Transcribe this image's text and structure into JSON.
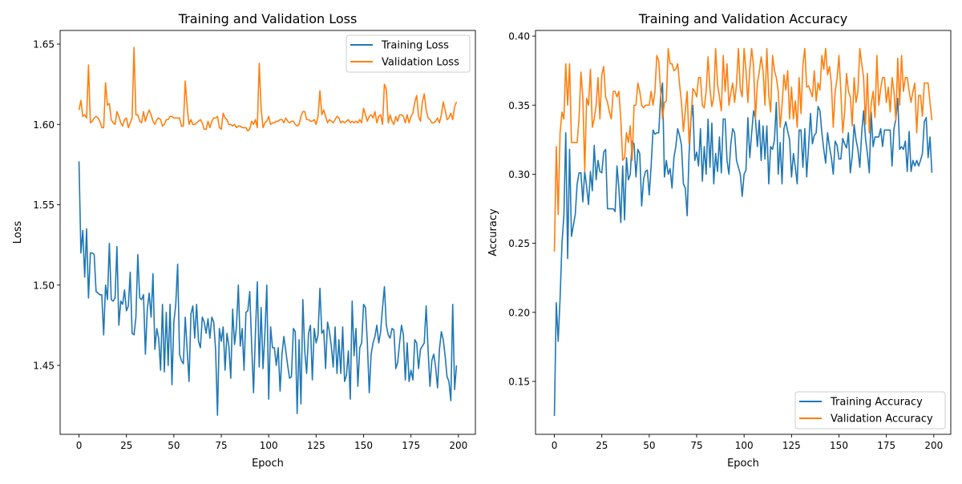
{
  "chart_data": [
    {
      "type": "line",
      "title": "Training and Validation Loss",
      "xlabel": "Epoch",
      "ylabel": "Loss",
      "xlim": [
        -9.95,
        208.95
      ],
      "ylim": [
        1.4071,
        1.6585
      ],
      "xticks": [
        0,
        25,
        50,
        75,
        100,
        125,
        150,
        175,
        200
      ],
      "xtick_labels": [
        "0",
        "25",
        "50",
        "75",
        "100",
        "125",
        "150",
        "175",
        "200"
      ],
      "yticks": [
        1.45,
        1.5,
        1.55,
        1.6,
        1.65
      ],
      "ytick_labels": [
        "1.45",
        "1.50",
        "1.55",
        "1.60",
        "1.65"
      ],
      "grid": false,
      "legend_position": "top-right",
      "series": [
        {
          "name": "Training Loss",
          "color": "#1f77b4",
          "values": [
            1.577,
            1.52,
            1.534,
            1.505,
            1.535,
            1.492,
            1.52,
            1.52,
            1.519,
            1.496,
            1.495,
            1.494,
            1.494,
            1.469,
            1.5,
            1.491,
            1.526,
            1.491,
            1.49,
            1.492,
            1.524,
            1.475,
            1.49,
            1.488,
            1.497,
            1.484,
            1.487,
            1.508,
            1.47,
            1.469,
            1.48,
            1.519,
            1.492,
            1.491,
            1.494,
            1.457,
            1.485,
            1.495,
            1.48,
            1.507,
            1.46,
            1.473,
            1.467,
            1.447,
            1.488,
            1.446,
            1.483,
            1.45,
            1.488,
            1.438,
            1.477,
            1.488,
            1.513,
            1.457,
            1.453,
            1.451,
            1.48,
            1.46,
            1.44,
            1.482,
            1.487,
            1.467,
            1.488,
            1.465,
            1.461,
            1.48,
            1.477,
            1.47,
            1.479,
            1.467,
            1.48,
            1.477,
            1.46,
            1.419,
            1.473,
            1.465,
            1.474,
            1.447,
            1.47,
            1.462,
            1.442,
            1.485,
            1.463,
            1.474,
            1.5,
            1.462,
            1.473,
            1.447,
            1.483,
            1.484,
            1.496,
            1.463,
            1.433,
            1.47,
            1.502,
            1.449,
            1.486,
            1.448,
            1.47,
            1.5,
            1.429,
            1.474,
            1.461,
            1.461,
            1.45,
            1.461,
            1.434,
            1.457,
            1.468,
            1.459,
            1.45,
            1.442,
            1.443,
            1.473,
            1.471,
            1.42,
            1.466,
            1.426,
            1.491,
            1.459,
            1.445,
            1.47,
            1.475,
            1.441,
            1.473,
            1.464,
            1.469,
            1.498,
            1.47,
            1.472,
            1.448,
            1.477,
            1.471,
            1.462,
            1.449,
            1.474,
            1.445,
            1.466,
            1.445,
            1.474,
            1.44,
            1.444,
            1.459,
            1.429,
            1.49,
            1.456,
            1.473,
            1.437,
            1.461,
            1.464,
            1.488,
            1.486,
            1.464,
            1.433,
            1.457,
            1.464,
            1.468,
            1.475,
            1.464,
            1.471,
            1.486,
            1.499,
            1.475,
            1.469,
            1.467,
            1.473,
            1.472,
            1.448,
            1.452,
            1.464,
            1.475,
            1.469,
            1.441,
            1.464,
            1.44,
            1.447,
            1.441,
            1.466,
            1.464,
            1.448,
            1.46,
            1.462,
            1.464,
            1.487,
            1.46,
            1.437,
            1.453,
            1.457,
            1.449,
            1.436,
            1.46,
            1.471,
            1.466,
            1.456,
            1.443,
            1.44,
            1.428,
            1.488,
            1.435,
            1.45
          ]
        },
        {
          "name": "Validation Loss",
          "color": "#ff7f0e",
          "values": [
            1.609,
            1.615,
            1.605,
            1.606,
            1.604,
            1.637,
            1.601,
            1.602,
            1.604,
            1.605,
            1.604,
            1.602,
            1.598,
            1.598,
            1.626,
            1.612,
            1.613,
            1.603,
            1.601,
            1.6,
            1.608,
            1.605,
            1.601,
            1.599,
            1.603,
            1.604,
            1.598,
            1.601,
            1.604,
            1.648,
            1.606,
            1.606,
            1.602,
            1.601,
            1.608,
            1.602,
            1.606,
            1.609,
            1.606,
            1.602,
            1.6,
            1.603,
            1.604,
            1.603,
            1.599,
            1.6,
            1.603,
            1.603,
            1.605,
            1.605,
            1.604,
            1.604,
            1.604,
            1.604,
            1.599,
            1.599,
            1.627,
            1.611,
            1.6,
            1.603,
            1.6,
            1.6,
            1.601,
            1.602,
            1.603,
            1.601,
            1.597,
            1.597,
            1.602,
            1.598,
            1.602,
            1.604,
            1.604,
            1.605,
            1.598,
            1.597,
            1.607,
            1.604,
            1.603,
            1.6,
            1.6,
            1.599,
            1.6,
            1.598,
            1.599,
            1.599,
            1.598,
            1.598,
            1.598,
            1.596,
            1.597,
            1.602,
            1.6,
            1.603,
            1.598,
            1.638,
            1.61,
            1.598,
            1.601,
            1.602,
            1.605,
            1.6,
            1.601,
            1.601,
            1.602,
            1.602,
            1.603,
            1.603,
            1.601,
            1.604,
            1.602,
            1.601,
            1.602,
            1.602,
            1.6,
            1.599,
            1.6,
            1.605,
            1.608,
            1.608,
            1.603,
            1.603,
            1.602,
            1.602,
            1.603,
            1.6,
            1.605,
            1.621,
            1.606,
            1.609,
            1.605,
            1.601,
            1.603,
            1.602,
            1.601,
            1.603,
            1.605,
            1.604,
            1.601,
            1.602,
            1.601,
            1.602,
            1.603,
            1.601,
            1.602,
            1.601,
            1.602,
            1.601,
            1.603,
            1.601,
            1.61,
            1.606,
            1.602,
            1.605,
            1.606,
            1.604,
            1.608,
            1.601,
            1.605,
            1.606,
            1.6,
            1.625,
            1.622,
            1.601,
            1.606,
            1.602,
            1.6,
            1.605,
            1.602,
            1.606,
            1.606,
            1.605,
            1.601,
            1.606,
            1.601,
            1.605,
            1.607,
            1.614,
            1.618,
            1.605,
            1.602,
            1.614,
            1.619,
            1.609,
            1.604,
            1.603,
            1.601,
            1.601,
            1.602,
            1.604,
            1.601,
            1.606,
            1.614,
            1.609,
            1.603,
            1.604,
            1.607,
            1.603,
            1.611,
            1.614
          ]
        }
      ]
    },
    {
      "type": "line",
      "title": "Training and Validation Accuracy",
      "xlabel": "Epoch",
      "ylabel": "Accuracy",
      "xlim": [
        -9.95,
        208.95
      ],
      "ylim": [
        0.1117,
        0.4041
      ],
      "xticks": [
        0,
        25,
        50,
        75,
        100,
        125,
        150,
        175,
        200
      ],
      "xtick_labels": [
        "0",
        "25",
        "50",
        "75",
        "100",
        "125",
        "150",
        "175",
        "200"
      ],
      "yticks": [
        0.15,
        0.2,
        0.25,
        0.3,
        0.35,
        0.4
      ],
      "ytick_labels": [
        "0.15",
        "0.20",
        "0.25",
        "0.30",
        "0.35",
        "0.40"
      ],
      "grid": false,
      "legend_position": "bottom-right",
      "series": [
        {
          "name": "Training Accuracy",
          "color": "#1f77b4",
          "values": [
            0.125,
            0.207,
            0.179,
            0.21,
            0.25,
            0.27,
            0.33,
            0.239,
            0.318,
            0.255,
            0.263,
            0.271,
            0.293,
            0.301,
            0.301,
            0.28,
            0.302,
            0.291,
            0.278,
            0.302,
            0.288,
            0.321,
            0.296,
            0.31,
            0.302,
            0.301,
            0.316,
            0.318,
            0.275,
            0.275,
            0.275,
            0.275,
            0.273,
            0.306,
            0.29,
            0.265,
            0.306,
            0.267,
            0.312,
            0.296,
            0.3,
            0.324,
            0.322,
            0.298,
            0.318,
            0.315,
            0.277,
            0.296,
            0.302,
            0.303,
            0.285,
            0.306,
            0.332,
            0.329,
            0.33,
            0.33,
            0.356,
            0.366,
            0.298,
            0.31,
            0.3,
            0.304,
            0.29,
            0.312,
            0.32,
            0.333,
            0.328,
            0.321,
            0.293,
            0.29,
            0.27,
            0.315,
            0.339,
            0.35,
            0.31,
            0.316,
            0.306,
            0.333,
            0.295,
            0.32,
            0.3,
            0.34,
            0.305,
            0.337,
            0.293,
            0.315,
            0.302,
            0.327,
            0.301,
            0.34,
            0.34,
            0.31,
            0.3,
            0.322,
            0.333,
            0.33,
            0.31,
            0.305,
            0.3,
            0.284,
            0.3,
            0.303,
            0.341,
            0.312,
            0.33,
            0.346,
            0.34,
            0.32,
            0.339,
            0.31,
            0.335,
            0.311,
            0.335,
            0.293,
            0.32,
            0.318,
            0.325,
            0.352,
            0.3,
            0.323,
            0.293,
            0.333,
            0.338,
            0.331,
            0.325,
            0.298,
            0.315,
            0.305,
            0.293,
            0.332,
            0.332,
            0.305,
            0.333,
            0.298,
            0.32,
            0.344,
            0.322,
            0.328,
            0.33,
            0.349,
            0.346,
            0.33,
            0.318,
            0.308,
            0.33,
            0.32,
            0.312,
            0.3,
            0.324,
            0.321,
            0.311,
            0.311,
            0.326,
            0.322,
            0.319,
            0.33,
            0.301,
            0.313,
            0.336,
            0.325,
            0.318,
            0.305,
            0.33,
            0.346,
            0.326,
            0.315,
            0.301,
            0.345,
            0.32,
            0.327,
            0.327,
            0.327,
            0.333,
            0.32,
            0.332,
            0.332,
            0.332,
            0.332,
            0.306,
            0.333,
            0.34,
            0.355,
            0.318,
            0.32,
            0.318,
            0.324,
            0.302,
            0.331,
            0.302,
            0.31,
            0.306,
            0.31,
            0.306,
            0.31,
            0.315,
            0.338,
            0.341,
            0.312,
            0.327,
            0.301
          ]
        },
        {
          "name": "Validation Accuracy",
          "color": "#ff7f0e",
          "values": [
            0.244,
            0.32,
            0.271,
            0.33,
            0.345,
            0.34,
            0.38,
            0.35,
            0.38,
            0.323,
            0.323,
            0.323,
            0.323,
            0.34,
            0.374,
            0.356,
            0.302,
            0.355,
            0.35,
            0.376,
            0.334,
            0.34,
            0.35,
            0.37,
            0.34,
            0.372,
            0.378,
            0.356,
            0.352,
            0.345,
            0.34,
            0.36,
            0.36,
            0.356,
            0.36,
            0.34,
            0.31,
            0.312,
            0.33,
            0.323,
            0.335,
            0.31,
            0.35,
            0.35,
            0.366,
            0.36,
            0.35,
            0.348,
            0.35,
            0.35,
            0.35,
            0.36,
            0.35,
            0.36,
            0.386,
            0.382,
            0.36,
            0.34,
            0.352,
            0.353,
            0.391,
            0.38,
            0.38,
            0.375,
            0.376,
            0.38,
            0.365,
            0.352,
            0.331,
            0.346,
            0.36,
            0.322,
            0.34,
            0.362,
            0.36,
            0.356,
            0.37,
            0.37,
            0.35,
            0.348,
            0.36,
            0.385,
            0.362,
            0.349,
            0.356,
            0.391,
            0.365,
            0.356,
            0.346,
            0.386,
            0.36,
            0.38,
            0.35,
            0.359,
            0.366,
            0.352,
            0.365,
            0.391,
            0.362,
            0.356,
            0.391,
            0.375,
            0.352,
            0.376,
            0.391,
            0.378,
            0.34,
            0.366,
            0.374,
            0.385,
            0.375,
            0.35,
            0.391,
            0.357,
            0.345,
            0.386,
            0.375,
            0.37,
            0.36,
            0.334,
            0.35,
            0.372,
            0.361,
            0.375,
            0.34,
            0.363,
            0.34,
            0.353,
            0.334,
            0.37,
            0.344,
            0.379,
            0.391,
            0.363,
            0.364,
            0.36,
            0.356,
            0.375,
            0.353,
            0.366,
            0.361,
            0.386,
            0.376,
            0.391,
            0.372,
            0.378,
            0.366,
            0.334,
            0.36,
            0.369,
            0.386,
            0.36,
            0.33,
            0.345,
            0.373,
            0.36,
            0.356,
            0.335,
            0.37,
            0.352,
            0.36,
            0.391,
            0.38,
            0.37,
            0.336,
            0.373,
            0.33,
            0.351,
            0.36,
            0.341,
            0.386,
            0.35,
            0.362,
            0.37,
            0.37,
            0.352,
            0.363,
            0.345,
            0.37,
            0.36,
            0.339,
            0.384,
            0.35,
            0.386,
            0.36,
            0.37,
            0.37,
            0.36,
            0.352,
            0.36,
            0.366,
            0.33,
            0.357,
            0.357,
            0.342,
            0.366,
            0.366,
            0.366,
            0.352,
            0.339
          ]
        }
      ]
    }
  ]
}
